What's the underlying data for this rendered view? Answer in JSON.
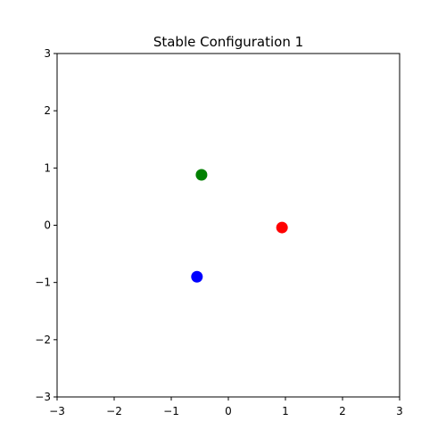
{
  "chart_data": {
    "type": "scatter",
    "title": "Stable Configuration 1",
    "xlabel": "",
    "ylabel": "",
    "xlim": [
      -3,
      3
    ],
    "ylim": [
      -3,
      3
    ],
    "xticks": [
      -3,
      -2,
      -1,
      0,
      1,
      2,
      3
    ],
    "yticks": [
      -3,
      -2,
      -1,
      0,
      1,
      2,
      3
    ],
    "xtick_labels": [
      "−3",
      "−2",
      "−1",
      "0",
      "1",
      "2",
      "3"
    ],
    "ytick_labels": [
      "−3",
      "−2",
      "−1",
      "0",
      "1",
      "2",
      "3"
    ],
    "grid": false,
    "points": [
      {
        "x": 0.94,
        "y": -0.04,
        "color": "#ff0000"
      },
      {
        "x": -0.47,
        "y": 0.88,
        "color": "#008000"
      },
      {
        "x": -0.55,
        "y": -0.9,
        "color": "#0000ff"
      }
    ]
  }
}
